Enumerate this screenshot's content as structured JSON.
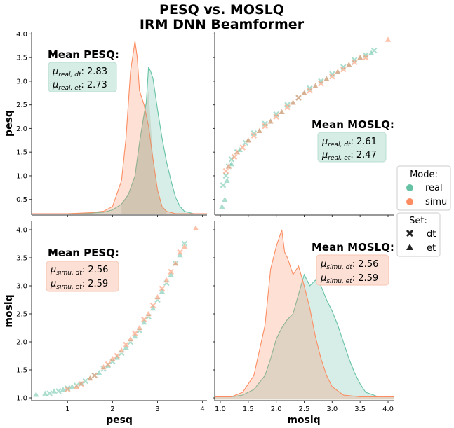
{
  "colors": {
    "real": "#66c2a5",
    "simu": "#fc8d62",
    "box_real": "#d5ede5",
    "box_simu": "#fde0d5"
  },
  "title_line1": "PESQ vs. MOSLQ",
  "title_line2": "IRM DNN Beamformer",
  "axis_labels": {
    "x_left": "pesq",
    "x_right": "moslq",
    "y_top": "pesq",
    "y_bottom": "moslq"
  },
  "legend": {
    "mode_title": "Mode:",
    "mode_items": [
      "real",
      "simu"
    ],
    "set_title": "Set:",
    "set_items": [
      "dt",
      "et"
    ]
  },
  "annotations": {
    "top_left": {
      "heading": "Mean PESQ:",
      "line1_sub": "real, dt",
      "line1_val": "2.83",
      "line2_sub": "real, et",
      "line2_val": "2.73"
    },
    "top_right": {
      "heading": "Mean MOSLQ:",
      "line1_sub": "real, dt",
      "line1_val": "2.61",
      "line2_sub": "real, et",
      "line2_val": "2.47"
    },
    "bottom_left": {
      "heading": "Mean PESQ:",
      "line1_sub": "simu, dt",
      "line1_val": "2.56",
      "line2_sub": "simu, et",
      "line2_val": "2.59"
    },
    "bottom_right": {
      "heading": "Mean MOSLQ:",
      "line1_sub": "simu, dt",
      "line1_val": "2.56",
      "line2_sub": "simu, et",
      "line2_val": "2.59"
    }
  },
  "chart_data": [
    {
      "type": "area",
      "panel": "pesq-kde",
      "x_ticks": [
        "1",
        "2",
        "3",
        "4"
      ],
      "y_ticks": [
        "0.5",
        "1.0",
        "1.5",
        "2.0",
        "2.5",
        "3.0",
        "3.5",
        "4.0"
      ],
      "xlim": [
        0.2,
        4.1
      ],
      "ylim": [
        0.17,
        4.05
      ],
      "series": [
        {
          "name": "real",
          "x": [
            0.2,
            1.0,
            1.5,
            1.8,
            2.0,
            2.2,
            2.35,
            2.5,
            2.6,
            2.7,
            2.75,
            2.8,
            2.85,
            2.9,
            3.0,
            3.1,
            3.2,
            3.3,
            3.4,
            3.5,
            3.6,
            3.8,
            4.1
          ],
          "y": [
            0.2,
            0.2,
            0.21,
            0.23,
            0.28,
            0.4,
            0.6,
            1.0,
            1.7,
            2.3,
            2.55,
            3.3,
            3.2,
            3.05,
            2.4,
            1.8,
            1.3,
            0.9,
            0.55,
            0.35,
            0.25,
            0.2,
            0.2
          ]
        },
        {
          "name": "simu",
          "x": [
            0.2,
            1.0,
            1.5,
            1.8,
            2.0,
            2.2,
            2.3,
            2.4,
            2.5,
            2.55,
            2.6,
            2.7,
            2.8,
            2.9,
            3.0,
            3.1,
            3.2,
            3.4,
            3.6,
            4.1
          ],
          "y": [
            0.2,
            0.2,
            0.22,
            0.25,
            0.35,
            0.9,
            1.8,
            3.2,
            3.85,
            3.5,
            2.8,
            2.5,
            2.05,
            1.35,
            0.7,
            0.35,
            0.25,
            0.2,
            0.2,
            0.2
          ]
        }
      ],
      "overlap": {
        "x": [
          2.2,
          2.35,
          2.5,
          2.6,
          2.7,
          2.75,
          2.8,
          2.9,
          3.0,
          3.1,
          3.2
        ],
        "y": [
          0.4,
          0.6,
          1.0,
          1.7,
          2.3,
          2.55,
          2.8,
          1.35,
          0.7,
          0.35,
          0.25
        ]
      }
    },
    {
      "type": "scatter",
      "panel": "moslq-vs-pesq",
      "x_ticks": [
        "1.0",
        "1.5",
        "2.0",
        "2.5",
        "3.0",
        "3.5",
        "4.0"
      ],
      "y_ticks": [
        "0.5",
        "1.0",
        "1.5",
        "2.0",
        "2.5",
        "3.0",
        "3.5",
        "4.0"
      ],
      "xlim": [
        0.9,
        4.1
      ],
      "ylim": [
        0.17,
        4.05
      ],
      "series": [
        {
          "name": "real-dt",
          "x": [
            1.05,
            1.1,
            1.15,
            1.2,
            1.3,
            1.45,
            1.6,
            1.8,
            2.0,
            2.2,
            2.4,
            2.6,
            2.8,
            3.0,
            3.2,
            3.4,
            3.6,
            3.75
          ],
          "y": [
            0.8,
            1.0,
            1.2,
            1.35,
            1.5,
            1.7,
            1.9,
            2.1,
            2.3,
            2.5,
            2.65,
            2.85,
            3.0,
            3.15,
            3.3,
            3.45,
            3.55,
            3.65
          ]
        },
        {
          "name": "real-et",
          "x": [
            1.03,
            1.08,
            1.12,
            1.2,
            1.35,
            1.5,
            1.7,
            1.9,
            2.1,
            2.3,
            2.5,
            2.7,
            2.9,
            3.1,
            3.3,
            3.5,
            3.7
          ],
          "y": [
            0.35,
            0.5,
            0.9,
            1.25,
            1.55,
            1.75,
            1.95,
            2.15,
            2.35,
            2.55,
            2.75,
            2.9,
            3.05,
            3.2,
            3.35,
            3.5,
            3.6
          ]
        },
        {
          "name": "simu-dt",
          "x": [
            1.1,
            1.25,
            1.4,
            1.6,
            1.8,
            2.0,
            2.2,
            2.4,
            2.6,
            2.8,
            3.0,
            3.2,
            3.4,
            3.6
          ],
          "y": [
            1.1,
            1.4,
            1.6,
            1.85,
            2.05,
            2.25,
            2.45,
            2.65,
            2.8,
            2.95,
            3.1,
            3.25,
            3.4,
            3.5
          ]
        },
        {
          "name": "simu-et",
          "x": [
            1.15,
            1.3,
            1.5,
            1.7,
            1.9,
            2.1,
            2.3,
            2.5,
            2.7,
            2.9,
            3.1,
            3.3,
            3.5,
            4.0
          ],
          "y": [
            1.2,
            1.5,
            1.75,
            1.95,
            2.15,
            2.35,
            2.55,
            2.75,
            2.9,
            3.05,
            3.2,
            3.35,
            3.5,
            3.88
          ]
        }
      ]
    },
    {
      "type": "scatter",
      "panel": "pesq-vs-moslq",
      "x_ticks": [
        "1",
        "2",
        "3",
        "4"
      ],
      "y_ticks": [
        "1.0",
        "1.5",
        "2.0",
        "2.5",
        "3.0",
        "3.5",
        "4.0"
      ],
      "xlim": [
        0.2,
        4.1
      ],
      "ylim": [
        0.95,
        4.15
      ],
      "series": [
        {
          "name": "real-dt",
          "x": [
            0.6,
            0.8,
            1.0,
            1.2,
            1.4,
            1.6,
            1.8,
            2.0,
            2.2,
            2.4,
            2.6,
            2.8,
            3.0,
            3.2,
            3.4,
            3.6
          ],
          "y": [
            1.08,
            1.12,
            1.17,
            1.22,
            1.3,
            1.4,
            1.52,
            1.65,
            1.8,
            2.0,
            2.2,
            2.45,
            2.75,
            3.05,
            3.4,
            3.75
          ]
        },
        {
          "name": "real-et",
          "x": [
            0.3,
            0.5,
            0.7,
            0.9,
            1.1,
            1.3,
            1.5,
            1.7,
            1.9,
            2.1,
            2.3,
            2.5,
            2.7,
            2.9,
            3.1,
            3.3,
            3.5
          ],
          "y": [
            1.06,
            1.08,
            1.12,
            1.15,
            1.2,
            1.26,
            1.35,
            1.45,
            1.58,
            1.72,
            1.9,
            2.1,
            2.35,
            2.6,
            2.9,
            3.2,
            3.55
          ]
        },
        {
          "name": "simu-dt",
          "x": [
            1.0,
            1.3,
            1.6,
            1.9,
            2.1,
            2.3,
            2.5,
            2.7,
            2.9,
            3.1,
            3.3,
            3.5
          ],
          "y": [
            1.15,
            1.25,
            1.4,
            1.6,
            1.75,
            1.95,
            2.15,
            2.4,
            2.65,
            2.95,
            3.25,
            3.6
          ]
        },
        {
          "name": "simu-et",
          "x": [
            1.2,
            1.5,
            1.8,
            2.0,
            2.2,
            2.4,
            2.6,
            2.8,
            3.0,
            3.2,
            3.4,
            3.6,
            3.85
          ],
          "y": [
            1.2,
            1.35,
            1.55,
            1.7,
            1.85,
            2.05,
            2.25,
            2.5,
            2.8,
            3.1,
            3.4,
            3.7,
            4.03
          ]
        }
      ]
    },
    {
      "type": "area",
      "panel": "moslq-kde",
      "x_ticks": [
        "1.0",
        "1.5",
        "2.0",
        "2.5",
        "3.0",
        "3.5",
        "4.0"
      ],
      "y_ticks": [
        "1.0",
        "1.5",
        "2.0",
        "2.5",
        "3.0",
        "3.5",
        "4.0"
      ],
      "xlim": [
        0.9,
        4.1
      ],
      "ylim": [
        0.95,
        4.15
      ],
      "series": [
        {
          "name": "real",
          "x": [
            0.9,
            1.2,
            1.4,
            1.6,
            1.8,
            1.9,
            2.0,
            2.1,
            2.2,
            2.3,
            2.4,
            2.5,
            2.6,
            2.7,
            2.8,
            2.9,
            3.0,
            3.1,
            3.2,
            3.3,
            3.4,
            3.5,
            3.6,
            3.8,
            4.1
          ],
          "y": [
            1.02,
            1.02,
            1.05,
            1.15,
            1.4,
            1.7,
            2.05,
            2.25,
            2.4,
            2.5,
            2.85,
            3.2,
            3.0,
            3.1,
            3.0,
            2.75,
            2.55,
            2.3,
            2.0,
            1.7,
            1.45,
            1.25,
            1.1,
            1.03,
            1.02
          ]
        },
        {
          "name": "simu",
          "x": [
            0.9,
            1.2,
            1.4,
            1.6,
            1.8,
            1.9,
            2.0,
            2.05,
            2.1,
            2.15,
            2.2,
            2.3,
            2.4,
            2.5,
            2.6,
            2.7,
            2.8,
            2.9,
            3.0,
            3.2,
            3.5,
            4.1
          ],
          "y": [
            1.02,
            1.02,
            1.1,
            1.4,
            2.3,
            3.3,
            3.7,
            3.85,
            4.0,
            3.6,
            3.5,
            3.2,
            3.35,
            3.0,
            2.6,
            2.1,
            1.7,
            1.4,
            1.2,
            1.05,
            1.02,
            1.02
          ]
        }
      ]
    }
  ]
}
